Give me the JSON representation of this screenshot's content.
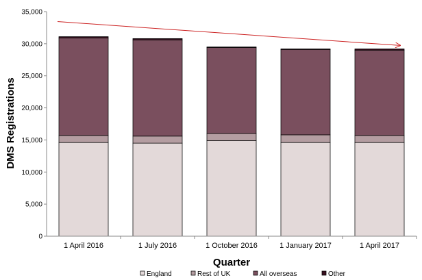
{
  "chart_data": {
    "type": "bar",
    "stacked": true,
    "categories": [
      "1 April 2016",
      "1 July 2016",
      "1 October 2016",
      "1 January 2017",
      "1 April 2017"
    ],
    "series": [
      {
        "name": "England",
        "values": [
          14600,
          14500,
          14900,
          14600,
          14600
        ],
        "color": "#e3d9d9"
      },
      {
        "name": "Rest of UK",
        "values": [
          1100,
          1100,
          1100,
          1200,
          1100
        ],
        "color": "#b49da1"
      },
      {
        "name": "All overseas",
        "values": [
          15200,
          15000,
          13400,
          13300,
          13300
        ],
        "color": "#7a4f5e"
      },
      {
        "name": "Other",
        "values": [
          200,
          200,
          100,
          100,
          200
        ],
        "color": "#3a1020"
      }
    ],
    "xlabel": "Quarter",
    "ylabel": "DMS Registrations",
    "ylim": [
      0,
      35000
    ],
    "yticks": [
      "0",
      "5,000",
      "10,000",
      "15,000",
      "20,000",
      "25,000",
      "30,000",
      "35,000"
    ],
    "grid": false,
    "legend_position": "bottom",
    "annotations": [
      {
        "type": "arrow",
        "direction": "downward trend",
        "color": "#cc2222"
      }
    ]
  }
}
